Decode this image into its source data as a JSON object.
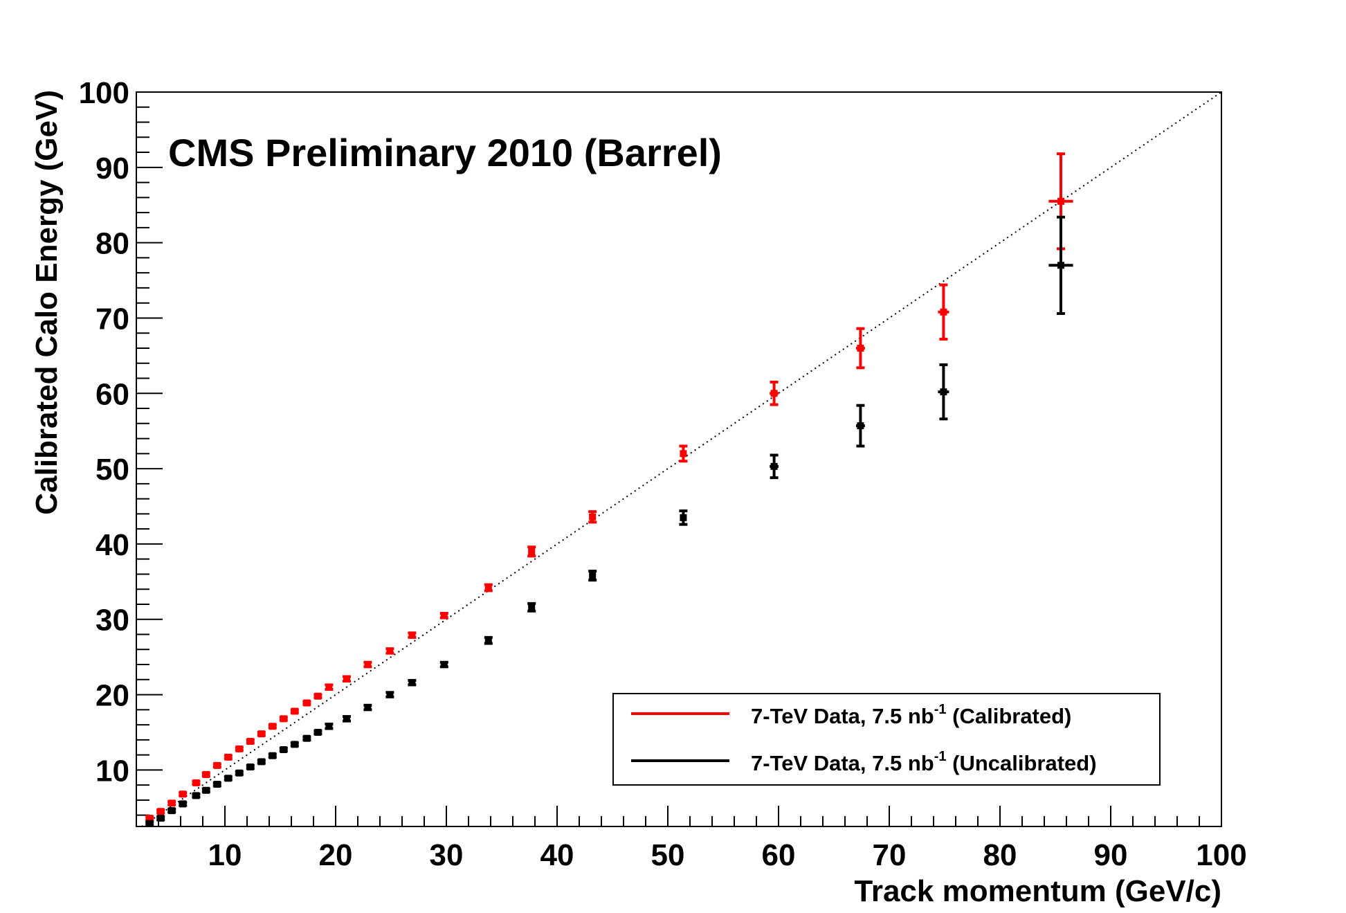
{
  "chart_data": {
    "type": "scatter",
    "title": "CMS Preliminary 2010 (Barrel)",
    "xlabel": "Track momentum (GeV/c)",
    "ylabel": "Calibrated Calo Energy (GeV)",
    "xlim": [
      2,
      100
    ],
    "ylim": [
      2.5,
      100
    ],
    "xticks": [
      10,
      20,
      30,
      40,
      50,
      60,
      70,
      80,
      90,
      100
    ],
    "yticks": [
      10,
      20,
      30,
      40,
      50,
      60,
      70,
      80,
      90,
      100
    ],
    "grid": false,
    "legend_position": "bottom-right",
    "reference_line": "y = x (dotted)",
    "series": [
      {
        "legend_prefix": "7-TeV Data, 7.5 nb",
        "legend_sup": "-1",
        "legend_suffix": " (Calibrated)",
        "color": "#ff0000",
        "points": [
          {
            "x": 3.2,
            "y": 3.6,
            "ex": 0.3,
            "ey": 0.2
          },
          {
            "x": 4.2,
            "y": 4.5,
            "ex": 0.3,
            "ey": 0.2
          },
          {
            "x": 5.2,
            "y": 5.6,
            "ex": 0.3,
            "ey": 0.2
          },
          {
            "x": 6.2,
            "y": 6.8,
            "ex": 0.3,
            "ey": 0.2
          },
          {
            "x": 7.4,
            "y": 8.3,
            "ex": 0.3,
            "ey": 0.2
          },
          {
            "x": 8.3,
            "y": 9.4,
            "ex": 0.3,
            "ey": 0.2
          },
          {
            "x": 9.3,
            "y": 10.6,
            "ex": 0.3,
            "ey": 0.2
          },
          {
            "x": 10.3,
            "y": 11.7,
            "ex": 0.3,
            "ey": 0.2
          },
          {
            "x": 11.3,
            "y": 12.8,
            "ex": 0.3,
            "ey": 0.2
          },
          {
            "x": 12.3,
            "y": 13.8,
            "ex": 0.3,
            "ey": 0.2
          },
          {
            "x": 13.3,
            "y": 14.8,
            "ex": 0.3,
            "ey": 0.2
          },
          {
            "x": 14.3,
            "y": 15.8,
            "ex": 0.3,
            "ey": 0.2
          },
          {
            "x": 15.3,
            "y": 16.8,
            "ex": 0.3,
            "ey": 0.2
          },
          {
            "x": 16.3,
            "y": 17.8,
            "ex": 0.3,
            "ey": 0.2
          },
          {
            "x": 17.4,
            "y": 18.9,
            "ex": 0.3,
            "ey": 0.2
          },
          {
            "x": 18.4,
            "y": 19.8,
            "ex": 0.3,
            "ey": 0.2
          },
          {
            "x": 19.4,
            "y": 21.0,
            "ex": 0.3,
            "ey": 0.3
          },
          {
            "x": 21.0,
            "y": 22.1,
            "ex": 0.3,
            "ey": 0.3
          },
          {
            "x": 22.9,
            "y": 24.0,
            "ex": 0.3,
            "ey": 0.3
          },
          {
            "x": 24.9,
            "y": 25.8,
            "ex": 0.3,
            "ey": 0.3
          },
          {
            "x": 26.9,
            "y": 27.9,
            "ex": 0.3,
            "ey": 0.3
          },
          {
            "x": 29.8,
            "y": 30.5,
            "ex": 0.3,
            "ey": 0.3
          },
          {
            "x": 33.8,
            "y": 34.2,
            "ex": 0.3,
            "ey": 0.4
          },
          {
            "x": 37.7,
            "y": 39.0,
            "ex": 0.3,
            "ey": 0.6
          },
          {
            "x": 43.2,
            "y": 43.6,
            "ex": 0.3,
            "ey": 0.7
          },
          {
            "x": 51.4,
            "y": 52.0,
            "ex": 0.3,
            "ey": 1.0
          },
          {
            "x": 59.6,
            "y": 60.0,
            "ex": 0.4,
            "ey": 1.5
          },
          {
            "x": 67.4,
            "y": 66.0,
            "ex": 0.4,
            "ey": 2.6
          },
          {
            "x": 74.9,
            "y": 70.8,
            "ex": 0.5,
            "ey": 3.6
          },
          {
            "x": 85.5,
            "y": 85.5,
            "ex": 1.1,
            "ey": 6.3
          }
        ]
      },
      {
        "legend_prefix": "7-TeV Data, 7.5 nb",
        "legend_sup": "-1",
        "legend_suffix": " (Uncalibrated)",
        "color": "#000000",
        "points": [
          {
            "x": 3.2,
            "y": 2.9,
            "ex": 0.3,
            "ey": 0.2
          },
          {
            "x": 4.2,
            "y": 3.6,
            "ex": 0.3,
            "ey": 0.2
          },
          {
            "x": 5.2,
            "y": 4.6,
            "ex": 0.3,
            "ey": 0.2
          },
          {
            "x": 6.2,
            "y": 5.5,
            "ex": 0.3,
            "ey": 0.2
          },
          {
            "x": 7.4,
            "y": 6.6,
            "ex": 0.3,
            "ey": 0.2
          },
          {
            "x": 8.3,
            "y": 7.3,
            "ex": 0.3,
            "ey": 0.2
          },
          {
            "x": 9.3,
            "y": 8.1,
            "ex": 0.3,
            "ey": 0.2
          },
          {
            "x": 10.3,
            "y": 8.9,
            "ex": 0.3,
            "ey": 0.2
          },
          {
            "x": 11.3,
            "y": 9.6,
            "ex": 0.3,
            "ey": 0.2
          },
          {
            "x": 12.3,
            "y": 10.4,
            "ex": 0.3,
            "ey": 0.2
          },
          {
            "x": 13.3,
            "y": 11.1,
            "ex": 0.3,
            "ey": 0.2
          },
          {
            "x": 14.3,
            "y": 11.9,
            "ex": 0.3,
            "ey": 0.2
          },
          {
            "x": 15.3,
            "y": 12.7,
            "ex": 0.3,
            "ey": 0.2
          },
          {
            "x": 16.3,
            "y": 13.4,
            "ex": 0.3,
            "ey": 0.2
          },
          {
            "x": 17.4,
            "y": 14.2,
            "ex": 0.3,
            "ey": 0.2
          },
          {
            "x": 18.4,
            "y": 15.0,
            "ex": 0.3,
            "ey": 0.2
          },
          {
            "x": 19.4,
            "y": 15.8,
            "ex": 0.3,
            "ey": 0.3
          },
          {
            "x": 21.0,
            "y": 16.8,
            "ex": 0.3,
            "ey": 0.3
          },
          {
            "x": 22.9,
            "y": 18.3,
            "ex": 0.3,
            "ey": 0.3
          },
          {
            "x": 24.9,
            "y": 20.0,
            "ex": 0.3,
            "ey": 0.3
          },
          {
            "x": 26.9,
            "y": 21.6,
            "ex": 0.3,
            "ey": 0.3
          },
          {
            "x": 29.8,
            "y": 24.0,
            "ex": 0.3,
            "ey": 0.3
          },
          {
            "x": 33.8,
            "y": 27.2,
            "ex": 0.3,
            "ey": 0.4
          },
          {
            "x": 37.7,
            "y": 31.6,
            "ex": 0.3,
            "ey": 0.5
          },
          {
            "x": 43.2,
            "y": 35.8,
            "ex": 0.3,
            "ey": 0.6
          },
          {
            "x": 51.4,
            "y": 43.5,
            "ex": 0.3,
            "ey": 0.9
          },
          {
            "x": 59.6,
            "y": 50.3,
            "ex": 0.4,
            "ey": 1.5
          },
          {
            "x": 67.4,
            "y": 55.7,
            "ex": 0.4,
            "ey": 2.7
          },
          {
            "x": 74.9,
            "y": 60.2,
            "ex": 0.5,
            "ey": 3.6
          },
          {
            "x": 85.5,
            "y": 77.0,
            "ex": 1.1,
            "ey": 6.4
          }
        ]
      }
    ]
  }
}
